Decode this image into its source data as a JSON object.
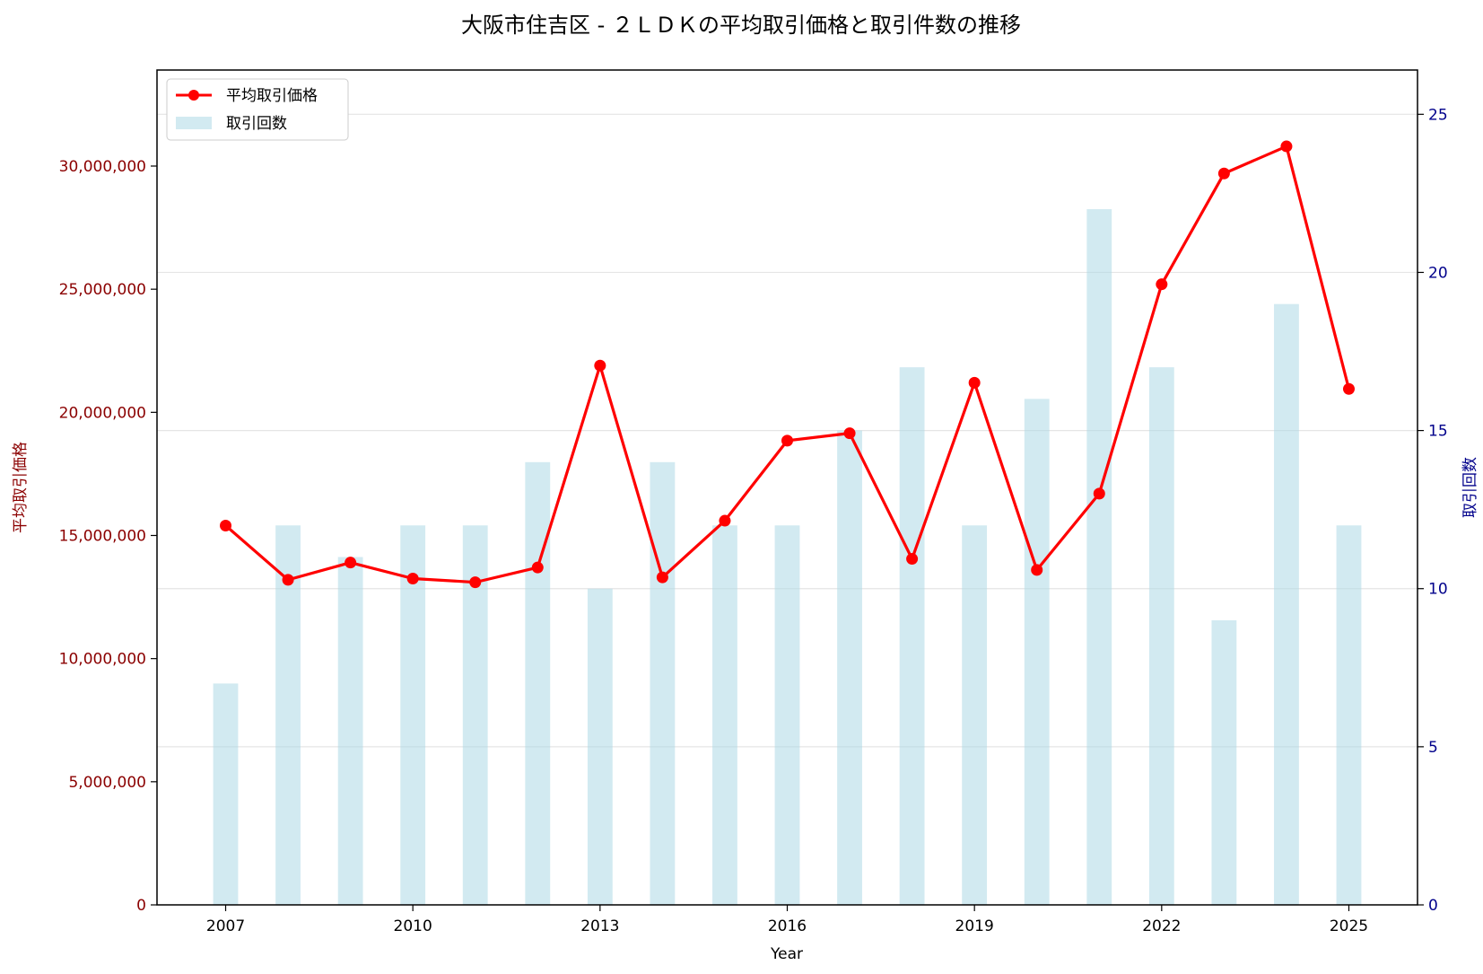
{
  "colors": {
    "price_line": "#ff0000",
    "bars": "#add8e6",
    "left_axis": "#8b0000",
    "right_axis": "#00008b",
    "grid": "#e5e5e5"
  },
  "chart_data": {
    "type": "bar+line",
    "title": "大阪市住吉区 - ２ＬＤＫの平均取引価格と取引件数の推移",
    "xlabel": "Year",
    "ylabel_left": "平均取引価格",
    "ylabel_right": "取引回数",
    "x": [
      2007,
      2008,
      2009,
      2010,
      2011,
      2012,
      2013,
      2014,
      2015,
      2016,
      2017,
      2018,
      2019,
      2020,
      2021,
      2022,
      2023,
      2024,
      2025
    ],
    "x_ticks": [
      "2007",
      "2010",
      "2013",
      "2016",
      "2019",
      "2022",
      "2025"
    ],
    "xlim": [
      2005.9,
      2026.1
    ],
    "y_left": {
      "ylim": [
        0,
        33900000
      ],
      "ticks": [
        0,
        5000000,
        10000000,
        15000000,
        20000000,
        25000000,
        30000000
      ],
      "tick_labels": [
        "0",
        "5,000,000",
        "10,000,000",
        "15,000,000",
        "20,000,000",
        "25,000,000",
        "30,000,000"
      ]
    },
    "y_right": {
      "ylim": [
        0,
        26.4
      ],
      "ticks": [
        0,
        5,
        10,
        15,
        20,
        25
      ],
      "tick_labels": [
        "0",
        "5",
        "10",
        "15",
        "20",
        "25"
      ]
    },
    "grid": "horizontal (right axis ticks)",
    "legend_position": "top-left",
    "series": [
      {
        "name": "平均取引価格",
        "kind": "line",
        "axis": "left",
        "values": [
          15400000,
          13200000,
          13900000,
          13250000,
          13100000,
          13700000,
          21900000,
          13300000,
          15600000,
          18850000,
          19150000,
          14050000,
          21200000,
          13600000,
          16700000,
          25200000,
          29700000,
          30800000,
          20950000
        ]
      },
      {
        "name": "取引回数",
        "kind": "bar",
        "axis": "right",
        "values": [
          7,
          12,
          11,
          12,
          12,
          14,
          10,
          14,
          12,
          12,
          15,
          17,
          12,
          16,
          22,
          17,
          9,
          19,
          12
        ]
      }
    ]
  }
}
